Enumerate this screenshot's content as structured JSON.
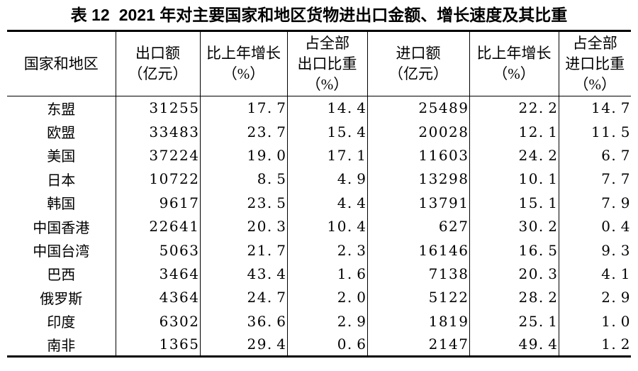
{
  "page": {
    "background_color": "#ffffff",
    "text_color": "#000000",
    "rule_color": "#000000"
  },
  "title": {
    "label": "表 12",
    "text": "2021 年对主要国家和地区货物进出口金额、增长速度及其比重"
  },
  "table": {
    "columns": [
      {
        "key": "region",
        "lines": [
          "国家和地区"
        ]
      },
      {
        "key": "export-amount",
        "lines": [
          "出口额",
          "（亿元）"
        ]
      },
      {
        "key": "export-growth",
        "lines": [
          "比上年增长",
          "（%）"
        ]
      },
      {
        "key": "export-share",
        "lines": [
          "占全部",
          "出口比重",
          "（%）"
        ]
      },
      {
        "key": "import-amount",
        "lines": [
          "进口额",
          "（亿元）"
        ]
      },
      {
        "key": "import-growth",
        "lines": [
          "比上年增长",
          "（%）"
        ]
      },
      {
        "key": "import-share",
        "lines": [
          "占全部",
          "进口比重",
          "（%）"
        ]
      }
    ],
    "rows": [
      {
        "region": "东盟",
        "values": [
          "31255",
          "17.7",
          "14.4",
          "25489",
          "22.2",
          "14.7"
        ]
      },
      {
        "region": "欧盟",
        "values": [
          "33483",
          "23.7",
          "15.4",
          "20028",
          "12.1",
          "11.5"
        ]
      },
      {
        "region": "美国",
        "values": [
          "37224",
          "19.0",
          "17.1",
          "11603",
          "24.2",
          "6.7"
        ]
      },
      {
        "region": "日本",
        "values": [
          "10722",
          "8.5",
          "4.9",
          "13298",
          "10.1",
          "7.7"
        ]
      },
      {
        "region": "韩国",
        "values": [
          "9617",
          "23.5",
          "4.4",
          "13791",
          "15.1",
          "7.9"
        ]
      },
      {
        "region": "中国香港",
        "values": [
          "22641",
          "20.3",
          "10.4",
          "627",
          "30.2",
          "0.4"
        ]
      },
      {
        "region": "中国台湾",
        "values": [
          "5063",
          "21.7",
          "2.3",
          "16146",
          "16.5",
          "9.3"
        ]
      },
      {
        "region": "巴西",
        "values": [
          "3464",
          "43.4",
          "1.6",
          "7138",
          "20.3",
          "4.1"
        ]
      },
      {
        "region": "俄罗斯",
        "values": [
          "4364",
          "24.7",
          "2.0",
          "5122",
          "28.2",
          "2.9"
        ]
      },
      {
        "region": "印度",
        "values": [
          "6302",
          "36.6",
          "2.9",
          "1819",
          "25.1",
          "1.0"
        ]
      },
      {
        "region": "南非",
        "values": [
          "1365",
          "29.4",
          "0.6",
          "2147",
          "49.4",
          "1.2"
        ]
      }
    ]
  }
}
